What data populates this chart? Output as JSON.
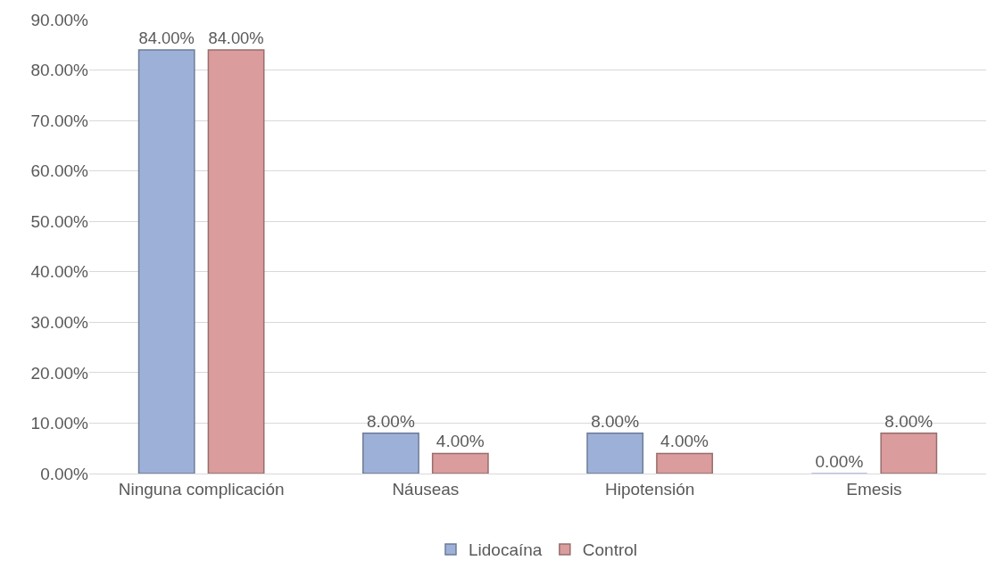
{
  "chart_data": {
    "type": "bar",
    "categories": [
      "Ninguna complicación",
      "Náuseas",
      "Hipotensión",
      "Emesis"
    ],
    "series": [
      {
        "name": "Lidocaína",
        "color": "#9db1d8",
        "values": [
          84,
          8,
          8,
          0
        ],
        "value_labels": [
          "84.00%",
          "8.00%",
          "8.00%",
          "0.00%"
        ]
      },
      {
        "name": "Control",
        "color": "#da9c9c",
        "values": [
          84,
          4,
          4,
          8
        ],
        "value_labels": [
          "84.00%",
          "4.00%",
          "4.00%",
          "8.00%"
        ]
      }
    ],
    "ylim": [
      0,
      90
    ],
    "yticks": [
      {
        "value": 0,
        "label": "0.00%"
      },
      {
        "value": 10,
        "label": "10.00%"
      },
      {
        "value": 20,
        "label": "20.00%"
      },
      {
        "value": 30,
        "label": "30.00%"
      },
      {
        "value": 40,
        "label": "40.00%"
      },
      {
        "value": 50,
        "label": "50.00%"
      },
      {
        "value": 60,
        "label": "60.00%"
      },
      {
        "value": 70,
        "label": "70.00%"
      },
      {
        "value": 80,
        "label": "80.00%"
      },
      {
        "value": 90,
        "label": "90.00%"
      }
    ],
    "grid": "y",
    "legend": "bottom"
  }
}
